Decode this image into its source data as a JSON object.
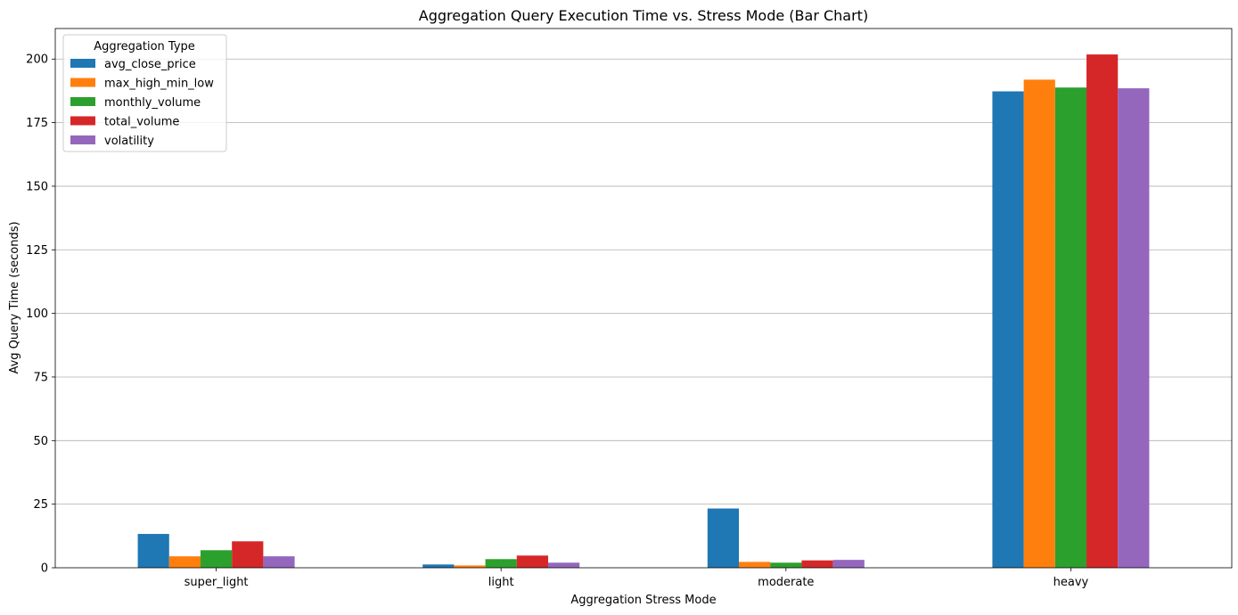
{
  "chart_data": {
    "type": "bar",
    "title": "Aggregation Query Execution Time vs. Stress Mode (Bar Chart)",
    "xlabel": "Aggregation Stress Mode",
    "ylabel": "Avg Query Time (seconds)",
    "categories": [
      "super_light",
      "light",
      "moderate",
      "heavy"
    ],
    "ylim": [
      0,
      212
    ],
    "yticks": [
      0,
      25,
      50,
      75,
      100,
      125,
      150,
      175,
      200
    ],
    "grid": "y",
    "legend": {
      "title": "Aggregation Type",
      "placement": "upper-left"
    },
    "series": [
      {
        "name": "avg_close_price",
        "color": "#1f77b4",
        "values": [
          13.3,
          1.3,
          23.3,
          187.3
        ]
      },
      {
        "name": "max_high_min_low",
        "color": "#ff7f0e",
        "values": [
          4.5,
          0.9,
          2.3,
          191.9
        ]
      },
      {
        "name": "monthly_volume",
        "color": "#2ca02c",
        "values": [
          6.9,
          3.4,
          2.0,
          188.8
        ]
      },
      {
        "name": "total_volume",
        "color": "#d62728",
        "values": [
          10.4,
          4.8,
          2.9,
          201.8
        ]
      },
      {
        "name": "volatility",
        "color": "#9467bd",
        "values": [
          4.5,
          2.0,
          3.1,
          188.5
        ]
      }
    ]
  }
}
